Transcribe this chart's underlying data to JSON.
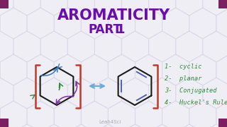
{
  "title_line1": "AROMATICITY",
  "title_line2": "PART 1",
  "title_color": "#6a0dad",
  "bg_color": "#f0eef5",
  "hex_outline_color": "#d8d4e8",
  "bracket_color": "#c0392b",
  "arrow_color": "#6aabdb",
  "list_items": [
    "1-  cyclic",
    "2-  planar",
    "3-  Conjugated",
    "4-  Huckel's Rule"
  ],
  "list_color": "#2e8b3a",
  "watermark": "Leah4Sci",
  "corner_color": "#7b2060"
}
